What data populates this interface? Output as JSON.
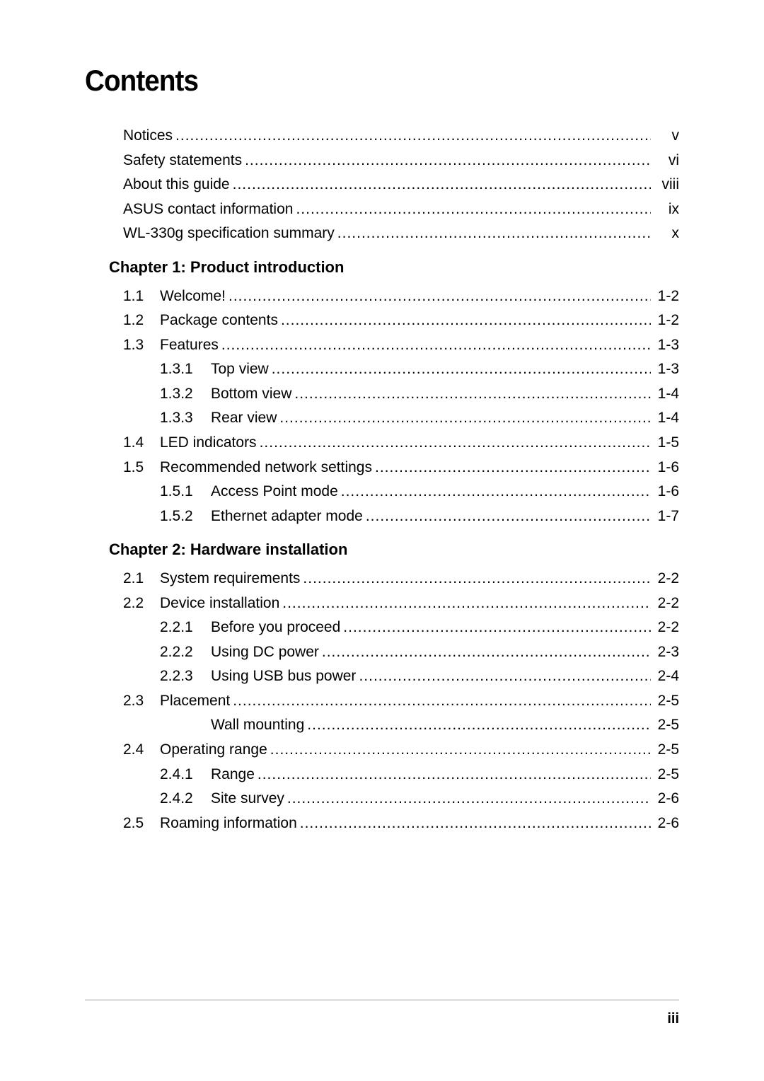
{
  "title": "Contents",
  "page_number": "iii",
  "front_matter": [
    {
      "label": "Notices",
      "page": "v"
    },
    {
      "label": "Safety statements",
      "page": "vi"
    },
    {
      "label": "About this guide",
      "page": "viii"
    },
    {
      "label": "ASUS contact information",
      "page": "ix"
    },
    {
      "label": "WL-330g specification summary",
      "page": "x"
    }
  ],
  "chapter1": {
    "heading": "Chapter  1: Product introduction",
    "items": [
      {
        "num": "1.1",
        "subnum": "",
        "label": "Welcome!",
        "page": "1-2",
        "indent": 0
      },
      {
        "num": "1.2",
        "subnum": "",
        "label": "Package contents",
        "page": "1-2",
        "indent": 0
      },
      {
        "num": "1.3",
        "subnum": "",
        "label": "Features",
        "page": "1-3",
        "indent": 0
      },
      {
        "num": "",
        "subnum": "1.3.1",
        "label": "Top view",
        "page": "1-3",
        "indent": 1
      },
      {
        "num": "",
        "subnum": "1.3.2",
        "label": "Bottom view",
        "page": "1-4",
        "indent": 1
      },
      {
        "num": "",
        "subnum": "1.3.3",
        "label": "Rear view",
        "page": "1-4",
        "indent": 1
      },
      {
        "num": "1.4",
        "subnum": "",
        "label": "LED indicators",
        "page": "1-5",
        "indent": 0
      },
      {
        "num": "1.5",
        "subnum": "",
        "label": "Recommended network settings",
        "page": "1-6",
        "indent": 0
      },
      {
        "num": "",
        "subnum": "1.5.1",
        "label": "Access Point mode",
        "page": "1-6",
        "indent": 1
      },
      {
        "num": "",
        "subnum": "1.5.2",
        "label": "Ethernet adapter mode",
        "page": "1-7",
        "indent": 1
      }
    ]
  },
  "chapter2": {
    "heading": "Chapter  2: Hardware installation",
    "items": [
      {
        "num": "2.1",
        "subnum": "",
        "label": "System requirements",
        "page": "2-2",
        "indent": 0
      },
      {
        "num": "2.2",
        "subnum": "",
        "label": "Device installation",
        "page": "2-2",
        "indent": 0
      },
      {
        "num": "",
        "subnum": "2.2.1",
        "label": "Before you proceed",
        "page": "2-2",
        "indent": 1
      },
      {
        "num": "",
        "subnum": "2.2.2",
        "label": "Using DC power",
        "page": "2-3",
        "indent": 1
      },
      {
        "num": "",
        "subnum": "2.2.3",
        "label": "Using USB bus power",
        "page": "2-4",
        "indent": 1
      },
      {
        "num": "2.3",
        "subnum": "",
        "label": "Placement",
        "page": "2-5",
        "indent": 0
      },
      {
        "num": "",
        "subnum": "",
        "label": "Wall mounting",
        "page": "2-5",
        "indent": 1,
        "nosubnum": true
      },
      {
        "num": "2.4",
        "subnum": "",
        "label": "Operating range",
        "page": "2-5",
        "indent": 0
      },
      {
        "num": "",
        "subnum": "2.4.1",
        "label": "Range",
        "page": "2-5",
        "indent": 1
      },
      {
        "num": "",
        "subnum": "2.4.2",
        "label": "Site survey",
        "page": "2-6",
        "indent": 1
      },
      {
        "num": "2.5",
        "subnum": "",
        "label": "Roaming information",
        "page": "2-6",
        "indent": 0
      }
    ]
  },
  "style": {
    "title_fontsize": 42,
    "body_fontsize": 21,
    "heading_fontsize": 22,
    "text_color": "#000000",
    "background_color": "#ffffff",
    "footer_line_color": "#999999"
  }
}
